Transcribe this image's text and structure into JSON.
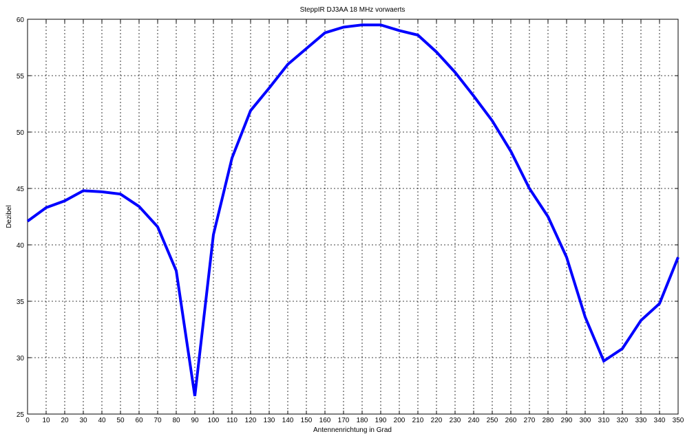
{
  "chart_data": {
    "type": "line",
    "title": "SteppIR DJ3AA 18 MHz vorwaerts",
    "xlabel": "Antennenrichtung in Grad",
    "ylabel": "Dezibel",
    "xlim": [
      0,
      350
    ],
    "ylim": [
      25,
      60
    ],
    "xticks": [
      0,
      10,
      20,
      30,
      40,
      50,
      60,
      70,
      80,
      90,
      100,
      110,
      120,
      130,
      140,
      150,
      160,
      170,
      180,
      190,
      200,
      210,
      220,
      230,
      240,
      250,
      260,
      270,
      280,
      290,
      300,
      310,
      320,
      330,
      340,
      350
    ],
    "yticks": [
      25,
      30,
      35,
      40,
      45,
      50,
      55,
      60
    ],
    "grid": true,
    "series": [
      {
        "color": "#0000ff",
        "x": [
          0,
          10,
          20,
          30,
          40,
          50,
          60,
          70,
          80,
          90,
          100,
          110,
          120,
          130,
          140,
          150,
          160,
          170,
          180,
          190,
          200,
          210,
          220,
          230,
          240,
          250,
          260,
          270,
          280,
          290,
          300,
          310,
          320,
          330,
          340,
          350
        ],
        "y": [
          42.1,
          43.3,
          43.9,
          44.8,
          44.7,
          44.5,
          43.4,
          41.6,
          37.7,
          26.6,
          40.9,
          47.7,
          51.9,
          53.9,
          56.0,
          57.4,
          58.8,
          59.3,
          59.5,
          59.5,
          59.0,
          58.6,
          57.1,
          55.3,
          53.2,
          51.0,
          48.3,
          45.0,
          42.5,
          38.9,
          33.6,
          29.7,
          30.8,
          33.3,
          34.8,
          38.9
        ]
      }
    ]
  }
}
